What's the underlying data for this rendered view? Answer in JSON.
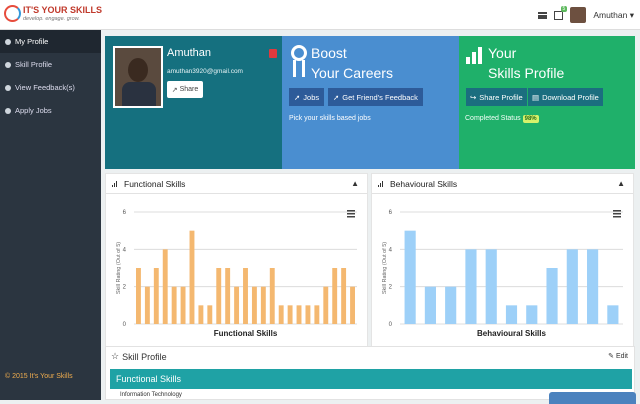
{
  "brand": {
    "name": "IT'S YOUR SKILLS",
    "tagline": "develop. engage. grow."
  },
  "topbar": {
    "badge": "5",
    "user_name": "Amuthan"
  },
  "sidebar": {
    "items": [
      {
        "label": "My Profile"
      },
      {
        "label": "Skill Profile"
      },
      {
        "label": "View Feedback(s)"
      },
      {
        "label": "Apply Jobs"
      }
    ],
    "footer": "© 2015 It's Your Skills"
  },
  "profile": {
    "name": "Amuthan",
    "email": "amuthan3920@gmail.com",
    "share_label": "Share"
  },
  "boost": {
    "title_line1": "Boost",
    "title_line2": "Your Careers",
    "jobs_label": "Jobs",
    "feedback_label": "Get Friend's Feedback",
    "note": "Pick your skills based jobs"
  },
  "skills_profile": {
    "title_line1": "Your",
    "title_line2": "Skills Profile",
    "share_label": "Share Profile",
    "download_label": "Download Profile",
    "status_label": "Completed Status",
    "status_value": "98%"
  },
  "panels": {
    "functional": "Functional Skills",
    "behavioural": "Behavioural Skills"
  },
  "skill_section": {
    "title": "Skill Profile",
    "edit_label": "Edit",
    "functional_bar": "Functional Skills",
    "row_text": "Information Technology"
  },
  "chart_data": [
    {
      "type": "bar",
      "title": "",
      "xlabel": "Functional Skills",
      "ylabel": "Skill Rating (Out of 5)",
      "ylim": [
        0,
        6
      ],
      "yticks": [
        0,
        2,
        4,
        6
      ],
      "color": "#f4b870",
      "values": [
        3,
        2,
        3,
        4,
        2,
        2,
        5,
        1,
        1,
        3,
        3,
        2,
        3,
        2,
        2,
        3,
        1,
        1,
        1,
        1,
        1,
        2,
        3,
        3,
        2
      ]
    },
    {
      "type": "bar",
      "title": "",
      "xlabel": "Behavioural Skills",
      "ylabel": "Skill Rating (Out of 5)",
      "ylim": [
        0,
        6
      ],
      "yticks": [
        0,
        2,
        4,
        6
      ],
      "color": "#9dd0f8",
      "values": [
        5,
        2,
        2,
        4,
        4,
        1,
        1,
        3,
        4,
        4,
        1
      ]
    }
  ]
}
